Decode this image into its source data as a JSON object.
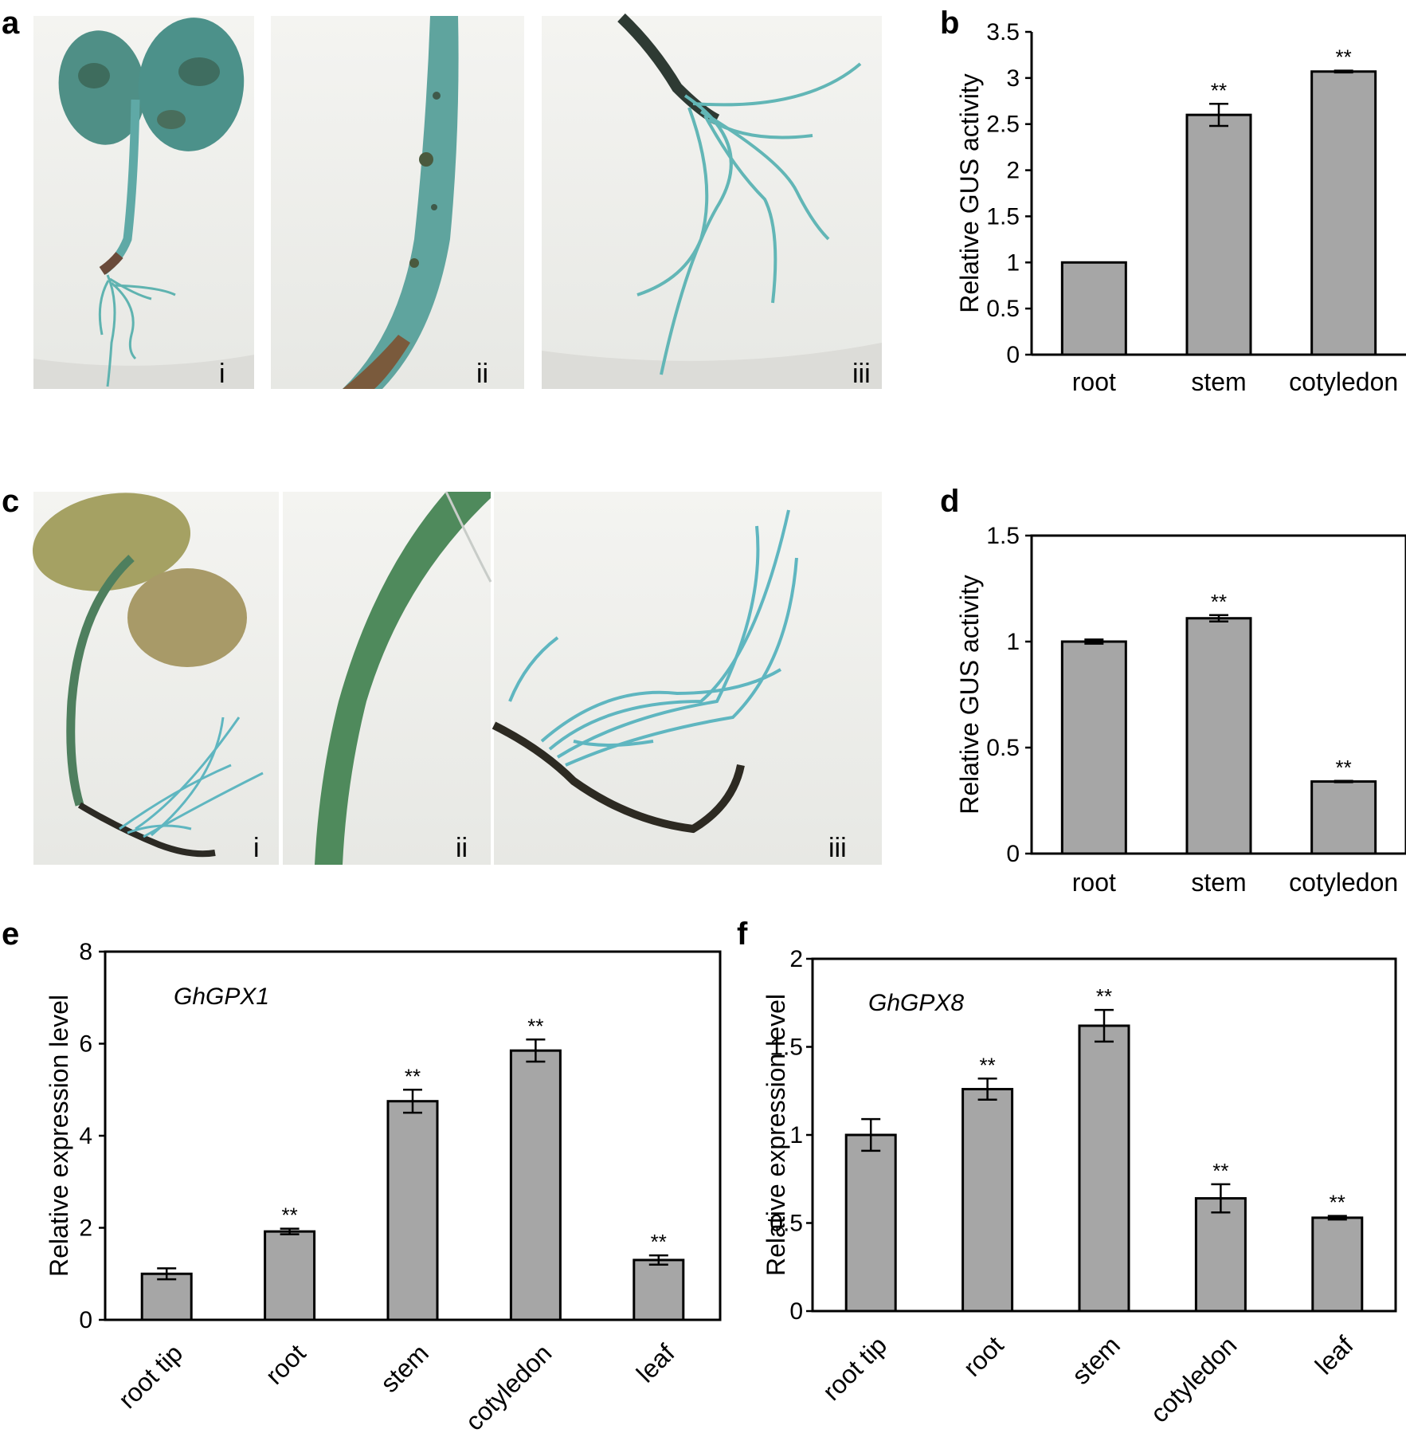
{
  "panels": {
    "a": {
      "label": "a",
      "sublabels": [
        "i",
        "ii",
        "iii"
      ]
    },
    "b": {
      "label": "b"
    },
    "c": {
      "label": "c",
      "sublabels": [
        "i",
        "ii",
        "iii"
      ]
    },
    "d": {
      "label": "d"
    },
    "e": {
      "label": "e"
    },
    "f": {
      "label": "f"
    }
  },
  "colors": {
    "bar": "#a6a6a6",
    "seedling_a": "#5fb3b0",
    "seedling_c": "#5fb6c0",
    "background": "#f2f2ef"
  },
  "chart_data": [
    {
      "id": "b",
      "type": "bar",
      "categories": [
        "root",
        "stem",
        "cotyledon"
      ],
      "values": [
        1.0,
        2.6,
        3.07
      ],
      "errors": [
        0.0,
        0.12,
        0.01
      ],
      "significance": [
        "",
        "**",
        "**"
      ],
      "ylabel": "Relative GUS activity",
      "ylim": [
        0,
        3.5
      ],
      "yticks": [
        0,
        0.5,
        1,
        1.5,
        2,
        2.5,
        3,
        3.5
      ],
      "ytick_labels": [
        "0",
        "0.5",
        "1",
        "1.5",
        "2",
        "2.5",
        "3",
        "3.5"
      ],
      "frame": "left-bottom",
      "grid": false
    },
    {
      "id": "d",
      "type": "bar",
      "categories": [
        "root",
        "stem",
        "cotyledon"
      ],
      "values": [
        1.0,
        1.11,
        0.34
      ],
      "errors": [
        0.01,
        0.015,
        0.003
      ],
      "significance": [
        "",
        "**",
        "**"
      ],
      "ylabel": "Relative GUS activity",
      "ylim": [
        0,
        1.5
      ],
      "yticks": [
        0,
        0.5,
        1,
        1.5
      ],
      "ytick_labels": [
        "0",
        "0.5",
        "1",
        "1.5"
      ],
      "frame": "box",
      "grid": false
    },
    {
      "id": "e",
      "type": "bar",
      "gene": "GhGPX1",
      "categories": [
        "root tip",
        "root",
        "stem",
        "cotyledon",
        "leaf"
      ],
      "values": [
        1.0,
        1.92,
        4.75,
        5.85,
        1.3
      ],
      "errors": [
        0.12,
        0.06,
        0.25,
        0.24,
        0.1
      ],
      "significance": [
        "",
        "**",
        "**",
        "**",
        "**"
      ],
      "ylabel": "Relative expression level",
      "ylim": [
        0,
        8
      ],
      "yticks": [
        0,
        2,
        4,
        6,
        8
      ],
      "ytick_labels": [
        "0",
        "2",
        "4",
        "6",
        "8"
      ],
      "frame": "box",
      "grid": false
    },
    {
      "id": "f",
      "type": "bar",
      "gene": "GhGPX8",
      "categories": [
        "root tip",
        "root",
        "stem",
        "cotyledon",
        "leaf"
      ],
      "values": [
        1.0,
        1.26,
        1.62,
        0.64,
        0.53
      ],
      "errors": [
        0.09,
        0.06,
        0.09,
        0.08,
        0.01
      ],
      "significance": [
        "",
        "**",
        "**",
        "**",
        "**"
      ],
      "ylabel": "Relative expression level",
      "ylim": [
        0,
        2
      ],
      "yticks": [
        0,
        0.5,
        1,
        1.5,
        2
      ],
      "ytick_labels": [
        "0",
        "0.5",
        "1",
        "1.5",
        "2"
      ],
      "frame": "box",
      "grid": false
    }
  ]
}
